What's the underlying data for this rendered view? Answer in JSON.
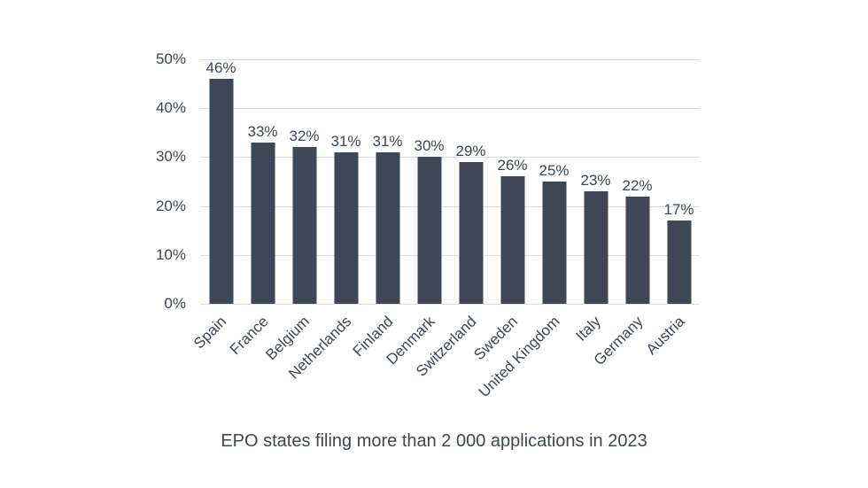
{
  "chart_data": {
    "type": "bar",
    "title": "EPO states filing more than 2 000 applications in 2023",
    "categories": [
      "Spain",
      "France",
      "Belgium",
      "Netherlands",
      "Finland",
      "Denmark",
      "Switzerland",
      "Sweden",
      "United Kingdom",
      "Italy",
      "Germany",
      "Austria"
    ],
    "values": [
      46,
      33,
      32,
      31,
      31,
      30,
      29,
      26,
      25,
      23,
      22,
      17
    ],
    "value_labels": [
      "46%",
      "33%",
      "32%",
      "31%",
      "31%",
      "30%",
      "29%",
      "26%",
      "25%",
      "23%",
      "22%",
      "17%"
    ],
    "ytick_values": [
      0,
      10,
      20,
      30,
      40,
      50
    ],
    "ytick_labels": [
      "0%",
      "10%",
      "20%",
      "30%",
      "40%",
      "50%"
    ],
    "ylim": [
      0,
      50
    ],
    "xlabel": "",
    "ylabel": "",
    "grid": "horizontal",
    "legend": "none",
    "bar_label_position": "above",
    "x_label_rotation_deg": 45,
    "colors": {
      "bar": "#3e4755",
      "text": "#3d4655",
      "gridline": "#dcdcdc",
      "background": "#ffffff"
    }
  }
}
